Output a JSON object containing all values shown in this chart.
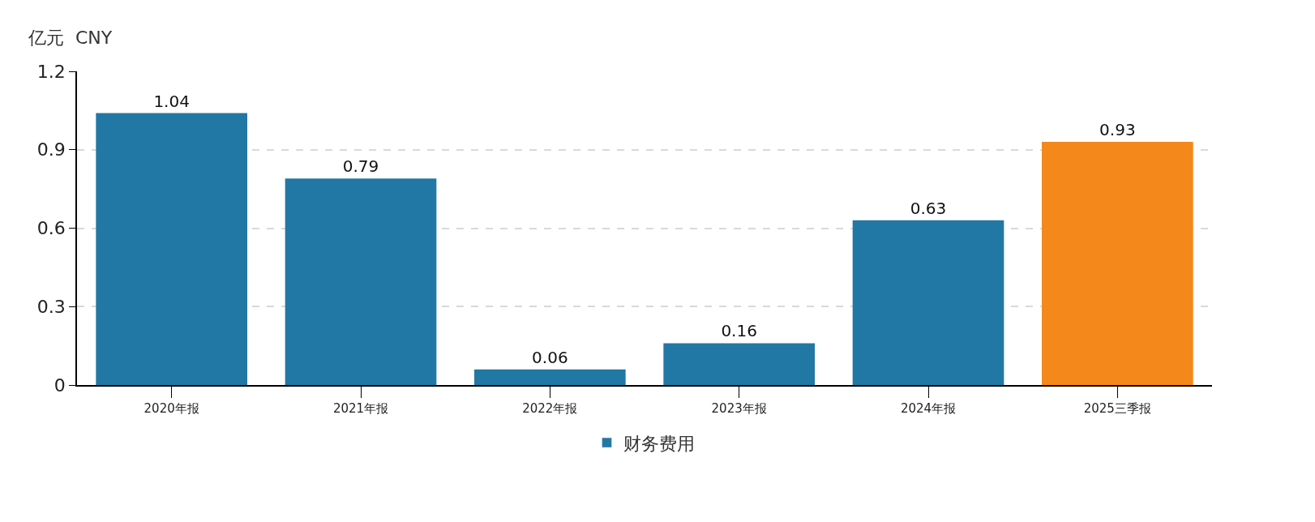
{
  "chart_data": {
    "type": "bar",
    "ylabel": "亿元  CNY",
    "categories": [
      "2020年报",
      "2021年报",
      "2022年报",
      "2023年报",
      "2024年报",
      "2025三季报"
    ],
    "series": [
      {
        "name": "财务费用",
        "color": "#2278a4",
        "values": [
          1.04,
          0.79,
          0.06,
          0.16,
          0.63,
          0.93
        ],
        "colors": [
          "#2278a4",
          "#2278a4",
          "#2278a4",
          "#2278a4",
          "#2278a4",
          "#f5881a"
        ]
      }
    ],
    "ylim": [
      0,
      1.2
    ],
    "yticks": [
      0,
      0.3,
      0.6,
      0.9,
      1.2
    ],
    "grid": "y",
    "legend": "bottom",
    "data_labels": true
  }
}
